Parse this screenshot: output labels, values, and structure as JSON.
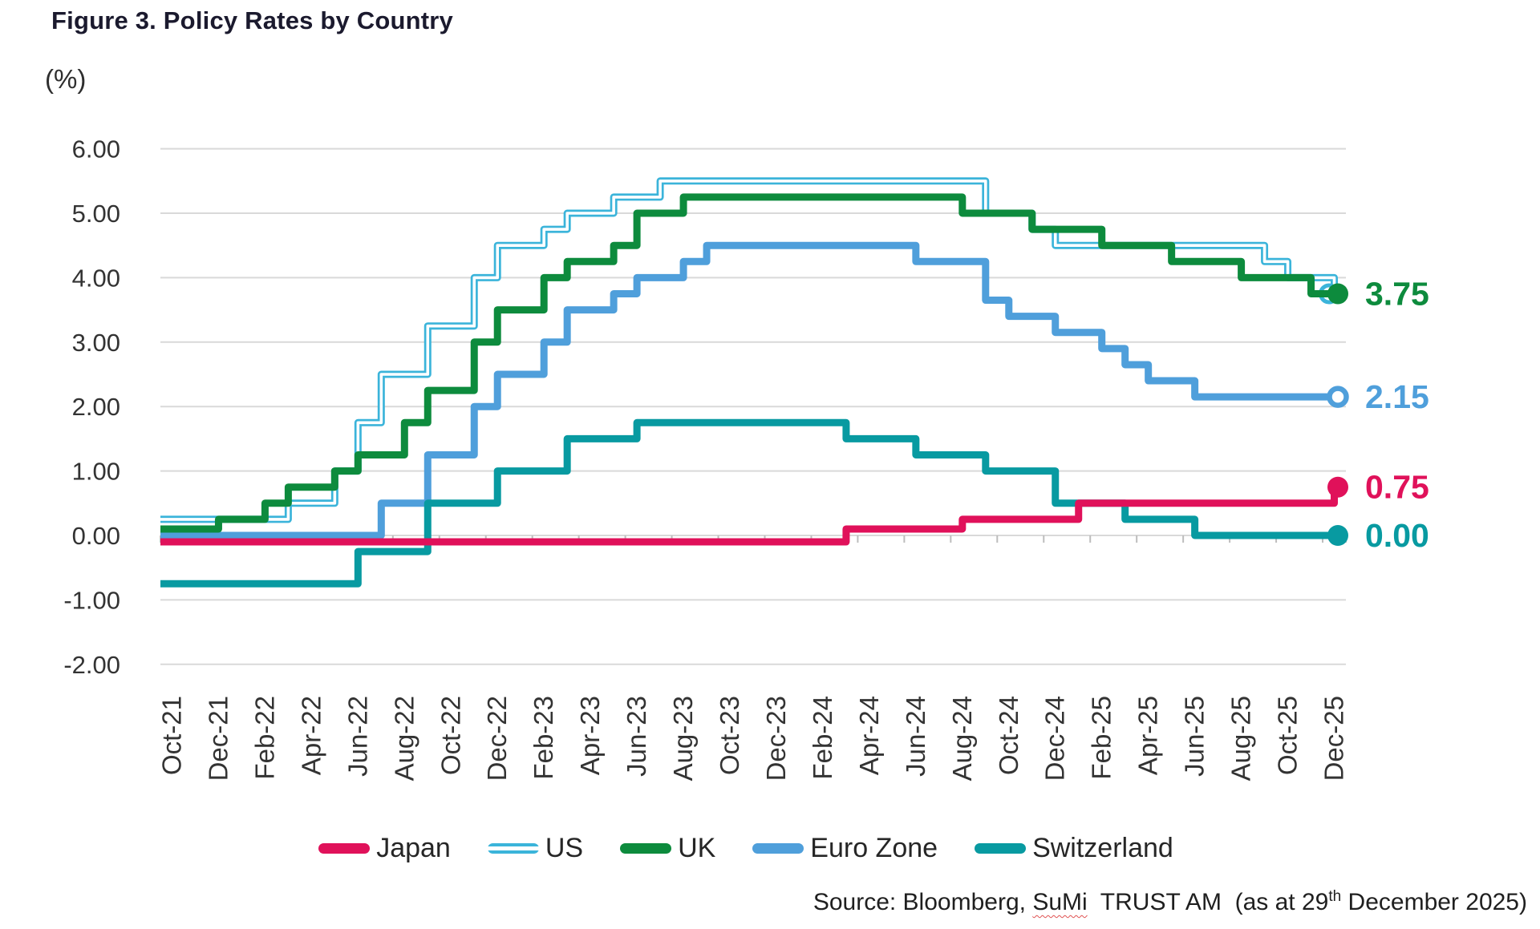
{
  "figure": {
    "title": "Figure 3. Policy Rates by Country",
    "unit_label": "(%)"
  },
  "chart_data": {
    "type": "line",
    "step_interpolation": true,
    "x_tick_labels": [
      "Oct-21",
      "Dec-21",
      "Feb-22",
      "Apr-22",
      "Jun-22",
      "Aug-22",
      "Oct-22",
      "Dec-22",
      "Feb-23",
      "Apr-23",
      "Jun-23",
      "Aug-23",
      "Oct-23",
      "Dec-23",
      "Feb-24",
      "Apr-24",
      "Jun-24",
      "Aug-24",
      "Oct-24",
      "Dec-24",
      "Feb-25",
      "Apr-25",
      "Jun-25",
      "Aug-25",
      "Oct-25",
      "Dec-25"
    ],
    "months_span": 51,
    "y_axis": {
      "min": -2,
      "max": 6,
      "tick_step": 1,
      "grid": true,
      "tick_labels": [
        "6.00",
        "5.00",
        "4.00",
        "3.00",
        "2.00",
        "1.00",
        "0.00",
        "-1.00",
        "-2.00"
      ]
    },
    "series": [
      {
        "name": "Japan",
        "color": "#e0115a",
        "line_style": "solid",
        "end_marker": "filled",
        "start_value": -0.1,
        "end_value": 0.75,
        "end_label": "0.75",
        "changes": [
          [
            "Mar-24",
            29,
            0.1
          ],
          [
            "Aug-24",
            34,
            0.25
          ],
          [
            "Jan-25",
            39,
            0.5
          ],
          [
            "Dec-25",
            50,
            0.75
          ]
        ]
      },
      {
        "name": "US",
        "color": "#3bb4da",
        "line_style": "double",
        "end_marker": "open",
        "start_value": 0.25,
        "end_value": 3.75,
        "end_label": "",
        "changes": [
          [
            "Mar-22",
            5,
            0.5
          ],
          [
            "May-22",
            7,
            1.0
          ],
          [
            "Jun-22",
            8,
            1.75
          ],
          [
            "Jul-22",
            9,
            2.5
          ],
          [
            "Sep-22",
            11,
            3.25
          ],
          [
            "Nov-22",
            13,
            4.0
          ],
          [
            "Dec-22",
            14,
            4.5
          ],
          [
            "Feb-23",
            16,
            4.75
          ],
          [
            "Mar-23",
            17,
            5.0
          ],
          [
            "May-23",
            19,
            5.25
          ],
          [
            "Jul-23",
            21,
            5.5
          ],
          [
            "Sep-24",
            35,
            5.0
          ],
          [
            "Nov-24",
            37,
            4.75
          ],
          [
            "Dec-24",
            38,
            4.5
          ],
          [
            "Sep-25",
            47,
            4.25
          ],
          [
            "Oct-25",
            48,
            4.0
          ],
          [
            "Dec-25",
            50,
            3.75
          ]
        ]
      },
      {
        "name": "UK",
        "color": "#0d8b3d",
        "line_style": "solid",
        "end_marker": "filled",
        "start_value": 0.1,
        "end_value": 3.75,
        "end_label": "3.75",
        "changes": [
          [
            "Dec-21",
            2,
            0.25
          ],
          [
            "Feb-22",
            4,
            0.5
          ],
          [
            "Mar-22",
            5,
            0.75
          ],
          [
            "May-22",
            7,
            1.0
          ],
          [
            "Jun-22",
            8,
            1.25
          ],
          [
            "Aug-22",
            10,
            1.75
          ],
          [
            "Sep-22",
            11,
            2.25
          ],
          [
            "Nov-22",
            13,
            3.0
          ],
          [
            "Dec-22",
            14,
            3.5
          ],
          [
            "Feb-23",
            16,
            4.0
          ],
          [
            "Mar-23",
            17,
            4.25
          ],
          [
            "May-23",
            19,
            4.5
          ],
          [
            "Jun-23",
            20,
            5.0
          ],
          [
            "Aug-23",
            22,
            5.25
          ],
          [
            "Aug-24",
            34,
            5.0
          ],
          [
            "Nov-24",
            37,
            4.75
          ],
          [
            "Feb-25",
            40,
            4.5
          ],
          [
            "May-25",
            43,
            4.25
          ],
          [
            "Aug-25",
            46,
            4.0
          ],
          [
            "Nov-25",
            49,
            3.75
          ]
        ]
      },
      {
        "name": "Euro Zone",
        "color": "#4f9fdb",
        "line_style": "solid",
        "end_marker": "open",
        "start_value": 0.0,
        "end_value": 2.15,
        "end_label": "2.15",
        "changes": [
          [
            "Jul-22",
            9,
            0.5
          ],
          [
            "Sep-22",
            11,
            1.25
          ],
          [
            "Nov-22",
            13,
            2.0
          ],
          [
            "Dec-22",
            14,
            2.5
          ],
          [
            "Feb-23",
            16,
            3.0
          ],
          [
            "Mar-23",
            17,
            3.5
          ],
          [
            "May-23",
            19,
            3.75
          ],
          [
            "Jun-23",
            20,
            4.0
          ],
          [
            "Aug-23",
            22,
            4.25
          ],
          [
            "Sep-23",
            23,
            4.5
          ],
          [
            "Jun-24",
            32,
            4.25
          ],
          [
            "Sep-24",
            35,
            3.65
          ],
          [
            "Oct-24",
            36,
            3.4
          ],
          [
            "Dec-24",
            38,
            3.15
          ],
          [
            "Feb-25",
            40,
            2.9
          ],
          [
            "Mar-25",
            41,
            2.65
          ],
          [
            "Apr-25",
            42,
            2.4
          ],
          [
            "Jun-25",
            44,
            2.15
          ]
        ]
      },
      {
        "name": "Switzerland",
        "color": "#089aa1",
        "line_style": "solid",
        "end_marker": "filled",
        "start_value": -0.75,
        "end_value": 0.0,
        "end_label": "0.00",
        "changes": [
          [
            "Jun-22",
            8,
            -0.25
          ],
          [
            "Sep-22",
            11,
            0.5
          ],
          [
            "Dec-22",
            14,
            1.0
          ],
          [
            "Mar-23",
            17,
            1.5
          ],
          [
            "Jun-23",
            20,
            1.75
          ],
          [
            "Mar-24",
            29,
            1.5
          ],
          [
            "Jun-24",
            32,
            1.25
          ],
          [
            "Sep-24",
            35,
            1.0
          ],
          [
            "Dec-24",
            38,
            0.5
          ],
          [
            "Mar-25",
            41,
            0.25
          ],
          [
            "Jun-25",
            44,
            0.0
          ]
        ]
      }
    ],
    "draw_order": [
      "US",
      "Euro Zone",
      "Switzerland",
      "UK",
      "Japan"
    ],
    "grid_color": "#d9d9d9",
    "axis_tick_color": "#bdbdbd",
    "axis_text_color": "#333333"
  },
  "legend": {
    "items": [
      {
        "label": "Japan",
        "color": "#e0115a",
        "style": "solid"
      },
      {
        "label": "US",
        "color": "#3bb4da",
        "style": "double"
      },
      {
        "label": "UK",
        "color": "#0d8b3d",
        "style": "solid"
      },
      {
        "label": "Euro Zone",
        "color": "#4f9fdb",
        "style": "solid"
      },
      {
        "label": "Switzerland",
        "color": "#089aa1",
        "style": "solid"
      }
    ]
  },
  "source": {
    "prefix": "Source: Bloomberg, ",
    "brand": "SuMi",
    "middle": "  TRUST AM  (as at 29",
    "superscript": "th",
    "suffix": " December 2025)"
  }
}
